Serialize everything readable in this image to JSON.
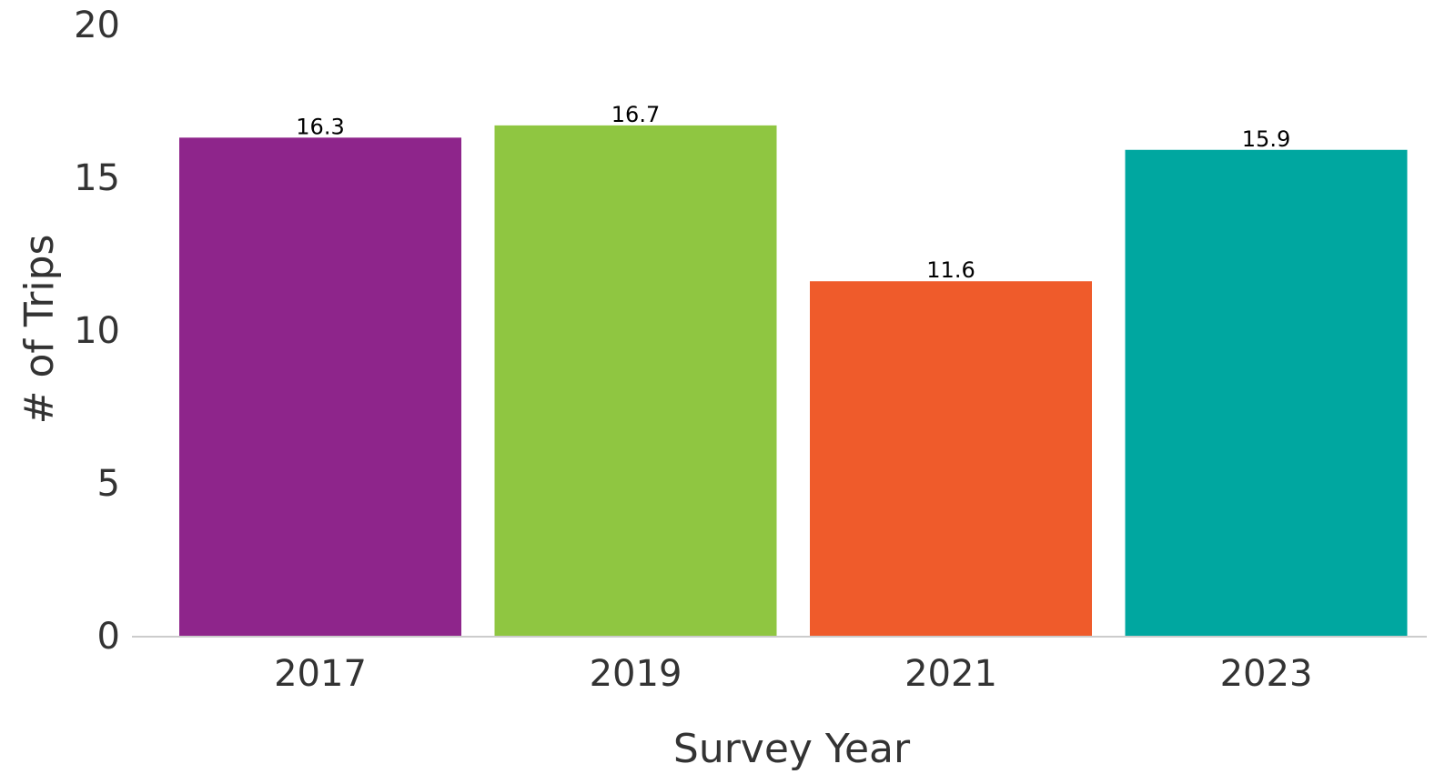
{
  "chart_data": {
    "type": "bar",
    "title": "",
    "xlabel": "Survey Year",
    "ylabel": "# of Trips",
    "categories": [
      "2017",
      "2019",
      "2021",
      "2023"
    ],
    "values": [
      16.3,
      16.7,
      11.6,
      15.9
    ],
    "value_labels": [
      "16.3",
      "16.7",
      "11.6",
      "15.9"
    ],
    "colors": [
      "#8e258b",
      "#8fc641",
      "#ef5b2b",
      "#00a7a0"
    ],
    "ylim": [
      0,
      20
    ],
    "yticks": [
      0,
      5,
      10,
      15,
      20
    ],
    "ytick_labels": [
      "0",
      "5",
      "10",
      "15",
      "20"
    ],
    "grid": false,
    "legend": "none",
    "axis_color": "#cccccc",
    "text_color": "#333333"
  }
}
